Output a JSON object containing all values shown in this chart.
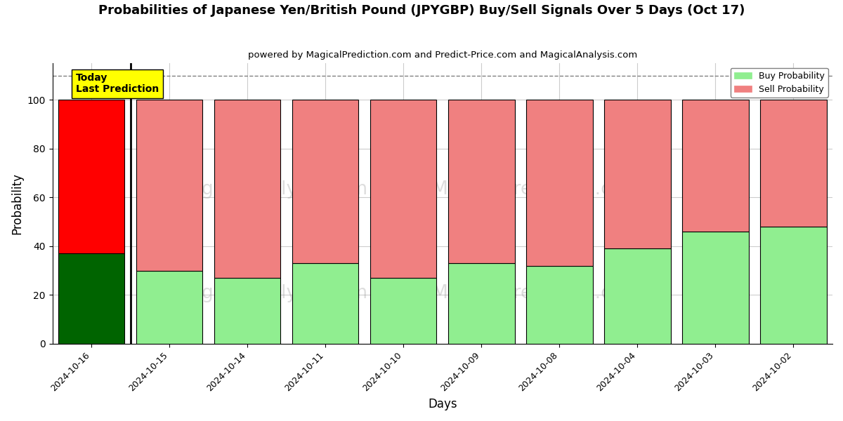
{
  "title": "Probabilities of Japanese Yen/British Pound (JPYGBP) Buy/Sell Signals Over 5 Days (Oct 17)",
  "subtitle": "powered by MagicalPrediction.com and Predict-Price.com and MagicalAnalysis.com",
  "xlabel": "Days",
  "ylabel": "Probability",
  "categories": [
    "2024-10-16",
    "2024-10-15",
    "2024-10-14",
    "2024-10-11",
    "2024-10-10",
    "2024-10-09",
    "2024-10-08",
    "2024-10-04",
    "2024-10-03",
    "2024-10-02"
  ],
  "buy_values": [
    37,
    30,
    27,
    33,
    27,
    33,
    32,
    39,
    46,
    48
  ],
  "sell_values": [
    63,
    70,
    73,
    67,
    73,
    67,
    68,
    61,
    54,
    52
  ],
  "today_bar_buy_color": "#006400",
  "today_bar_sell_color": "#ff0000",
  "other_bar_buy_color": "#90ee90",
  "other_bar_sell_color": "#f08080",
  "today_box_color": "#ffff00",
  "today_box_text": "Today\nLast Prediction",
  "legend_buy_color": "#90ee90",
  "legend_sell_color": "#f08080",
  "legend_buy_label": "Buy Probability",
  "legend_sell_label": "Sell Probability",
  "ylim": [
    0,
    115
  ],
  "yticks": [
    0,
    20,
    40,
    60,
    80,
    100
  ],
  "dashed_line_y": 110,
  "background_color": "#ffffff",
  "grid_color": "#cccccc",
  "bar_width": 0.85
}
